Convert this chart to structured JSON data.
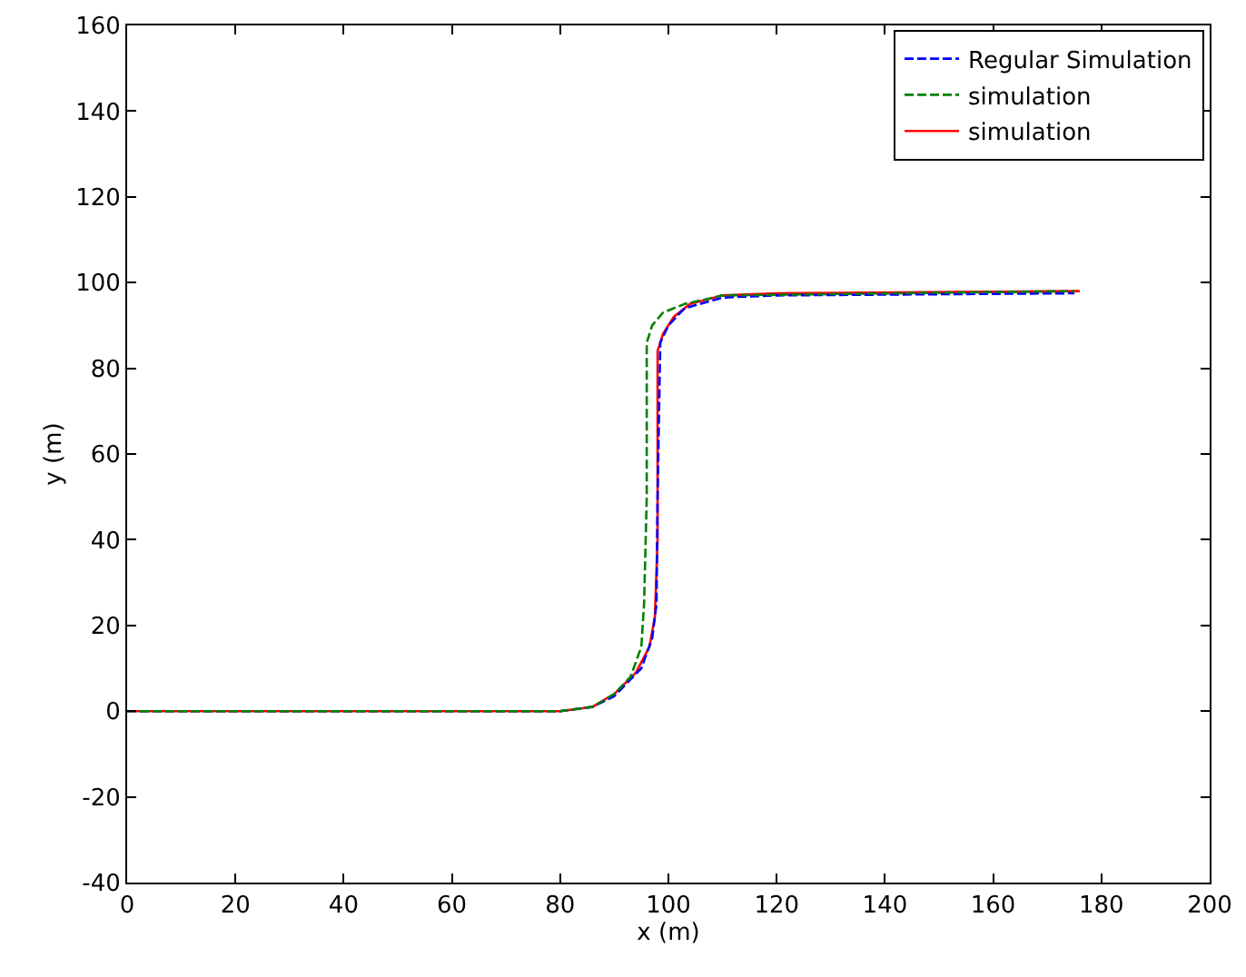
{
  "chart_data": {
    "type": "line",
    "xlabel": "x (m)",
    "ylabel": "y (m)",
    "xlim": [
      0,
      200
    ],
    "xticks": [
      0,
      20,
      40,
      60,
      80,
      100,
      120,
      140,
      160,
      180,
      200
    ],
    "ylim": [
      -40,
      160
    ],
    "yticks": [
      -40,
      -20,
      0,
      20,
      40,
      60,
      80,
      100,
      120,
      140,
      160
    ],
    "legend": "top right",
    "series": [
      {
        "name": "Regular Simulation",
        "color": "#0000ff",
        "line_style": "dashed",
        "x": [
          0,
          80,
          86,
          90,
          95,
          97,
          97.8,
          98,
          98.5,
          100,
          103,
          110,
          120,
          175
        ],
        "values": [
          0,
          0,
          1,
          3.5,
          10,
          17,
          25,
          50,
          86,
          90,
          94,
          96.5,
          97,
          97.5
        ]
      },
      {
        "name": "simulation",
        "color": "#008000",
        "line_style": "dashed",
        "x": [
          0,
          80,
          86,
          90,
          93,
          95,
          95.5,
          96,
          96,
          97,
          99,
          103,
          110,
          175
        ],
        "values": [
          0,
          0,
          1,
          4,
          8,
          15,
          25,
          50,
          86,
          90,
          93,
          95,
          97,
          98
        ]
      },
      {
        "name": "simulation",
        "color": "#ff0000",
        "line_style": "solid",
        "x": [
          0,
          80,
          86,
          90,
          94,
          96.5,
          97.5,
          98,
          98,
          99,
          101,
          104,
          110,
          120,
          176
        ],
        "values": [
          0,
          0,
          1,
          4,
          9,
          15,
          22,
          40,
          84,
          88,
          92,
          95,
          97,
          97.5,
          98
        ]
      }
    ]
  }
}
